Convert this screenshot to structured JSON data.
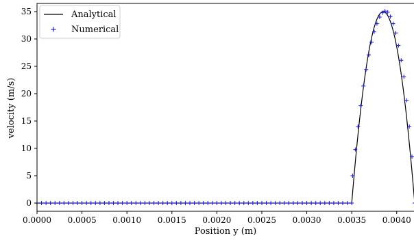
{
  "chart_data": {
    "type": "line",
    "xlabel": "Position y (m)",
    "ylabel": "velocity (m/s)",
    "xlim": [
      0.0,
      0.0042
    ],
    "ylim": [
      -1.5,
      36.5
    ],
    "x_ticks": [
      "0.0000",
      "0.0005",
      "0.0010",
      "0.0015",
      "0.0020",
      "0.0025",
      "0.0030",
      "0.0035",
      "0.0040"
    ],
    "x_tick_values": [
      0.0,
      0.0005,
      0.001,
      0.0015,
      0.002,
      0.0025,
      0.003,
      0.0035,
      0.004
    ],
    "y_ticks": [
      "0",
      "5",
      "10",
      "15",
      "20",
      "25",
      "30",
      "35"
    ],
    "y_tick_values": [
      0,
      5,
      10,
      15,
      20,
      25,
      30,
      35
    ],
    "grid": false,
    "legend_position": "top-left",
    "series": [
      {
        "name": "Analytical",
        "style": "line",
        "color": "#000000",
        "x": [
          0.0,
          0.0035,
          0.00355,
          0.0036,
          0.00365,
          0.0037,
          0.00375,
          0.0038,
          0.00385,
          0.0039,
          0.00395,
          0.004,
          0.00405,
          0.0041,
          0.00415,
          0.0042
        ],
        "y": [
          0.0,
          0.0,
          9.7,
          18.2,
          25.2,
          30.5,
          33.9,
          35.0,
          35.0,
          33.9,
          30.5,
          25.2,
          18.2,
          9.7,
          3.0,
          0.0
        ]
      },
      {
        "name": "Numerical",
        "style": "marker",
        "marker": "+",
        "color": "#1f1fd6",
        "x_zero_region": [
          0.0,
          0.0035,
          5e-05
        ],
        "x": [
          0.00351,
          0.00354,
          0.00357,
          0.0036,
          0.00363,
          0.00366,
          0.00369,
          0.00372,
          0.00375,
          0.00378,
          0.00381,
          0.00384,
          0.00387,
          0.0039,
          0.00393,
          0.00396,
          0.00399,
          0.00402,
          0.00405,
          0.00408,
          0.00411,
          0.00414,
          0.00417,
          0.0042
        ],
        "y": [
          5.0,
          9.8,
          14.0,
          17.8,
          21.4,
          24.4,
          27.1,
          29.4,
          31.3,
          32.8,
          34.0,
          34.8,
          35.1,
          34.9,
          34.1,
          32.8,
          31.1,
          28.8,
          26.1,
          23.1,
          18.8,
          14.0,
          8.5,
          0.0
        ]
      }
    ]
  }
}
